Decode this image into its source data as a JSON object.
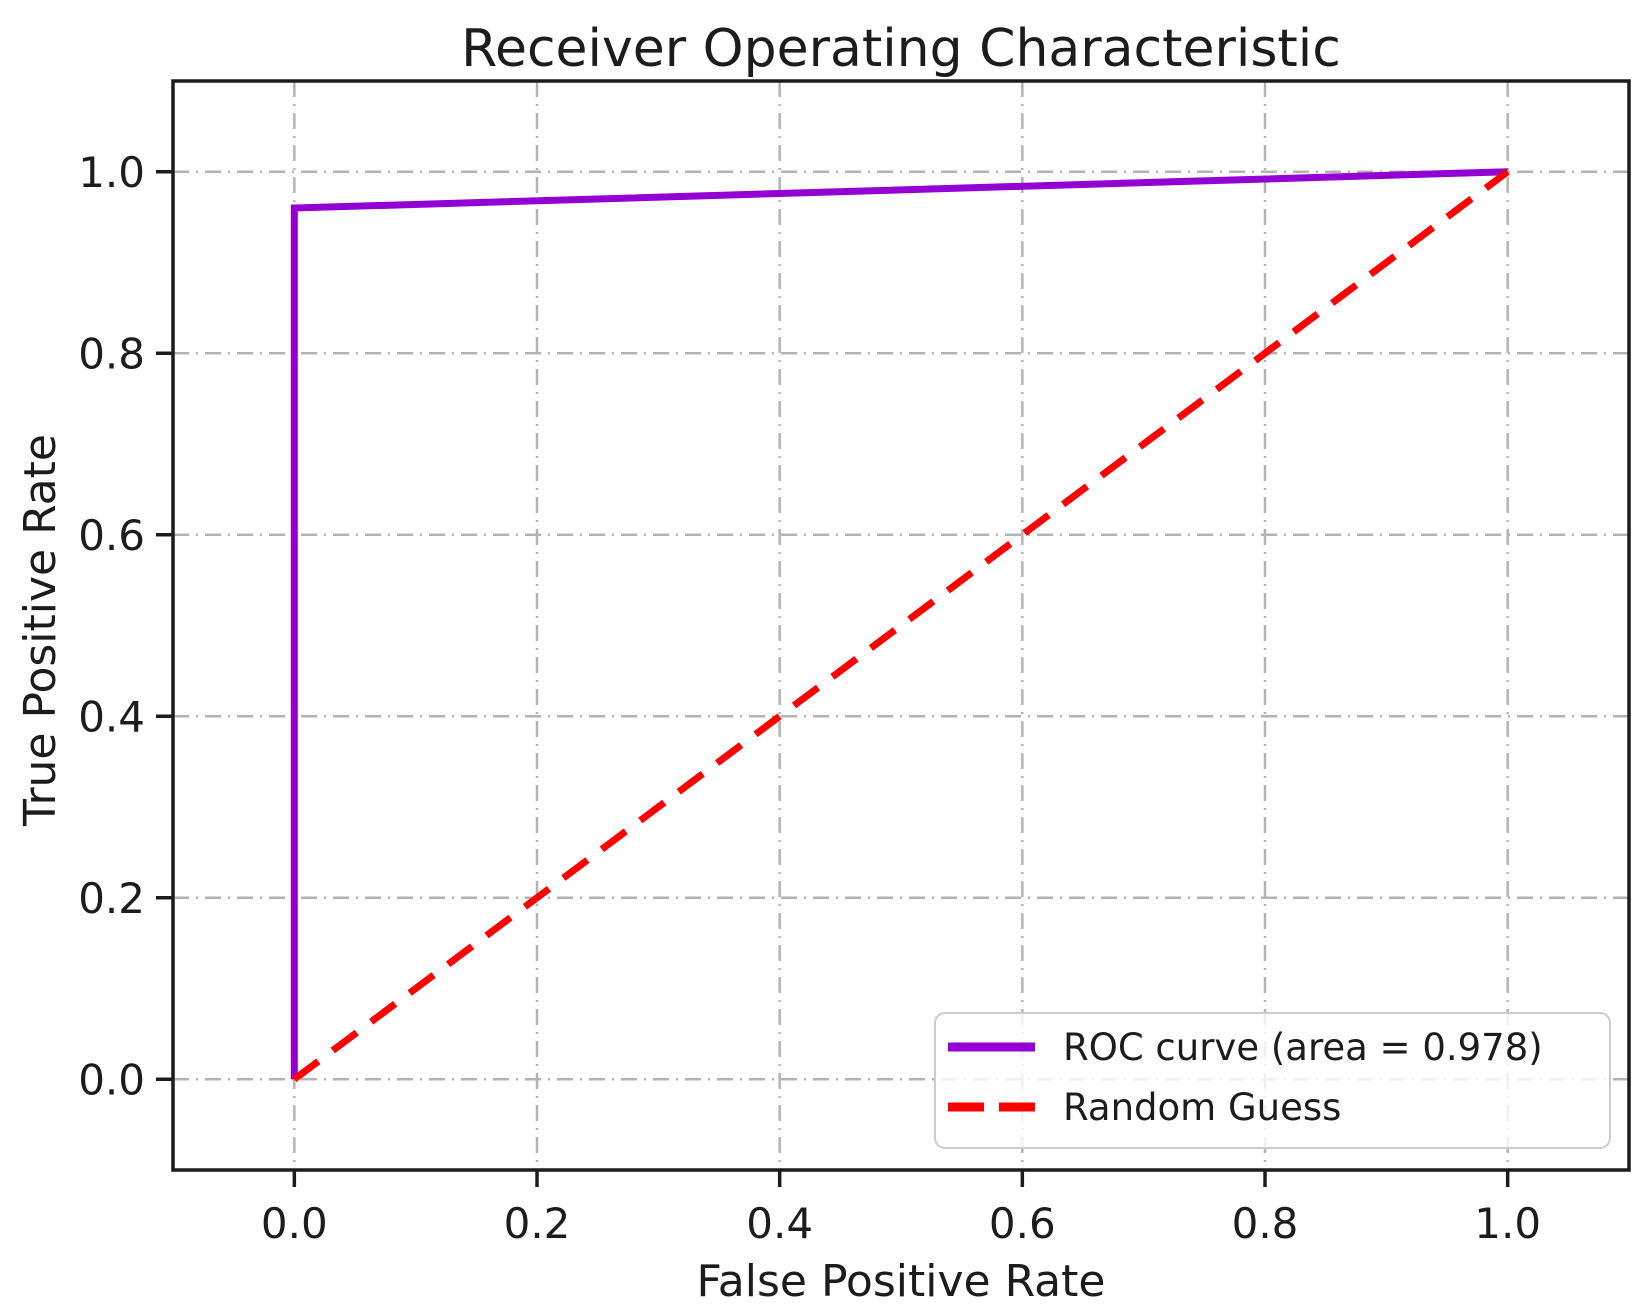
{
  "chart_data": {
    "type": "line",
    "title": "Receiver Operating Characteristic",
    "xlabel": "False Positive Rate",
    "ylabel": "True Positive Rate",
    "xlim": [
      -0.1,
      1.1
    ],
    "ylim": [
      -0.1,
      1.1
    ],
    "x_ticks": [
      0.0,
      0.2,
      0.4,
      0.6,
      0.8,
      1.0
    ],
    "y_ticks": [
      0.0,
      0.2,
      0.4,
      0.6,
      0.8,
      1.0
    ],
    "x_tick_labels": [
      "0.0",
      "0.2",
      "0.4",
      "0.6",
      "0.8",
      "1.0"
    ],
    "y_tick_labels": [
      "0.0",
      "0.2",
      "0.4",
      "0.6",
      "0.8",
      "1.0"
    ],
    "grid": true,
    "grid_style": "dash-dot",
    "legend_position": "lower right",
    "series": [
      {
        "name": "ROC curve (area = 0.978)",
        "color": "#9400D3",
        "style": "solid",
        "auc": 0.978,
        "points": [
          [
            0.0,
            0.0
          ],
          [
            0.0,
            0.96
          ],
          [
            1.0,
            1.0
          ]
        ]
      },
      {
        "name": "Random Guess",
        "color": "#FF0000",
        "style": "dashed",
        "points": [
          [
            0.0,
            0.0
          ],
          [
            1.0,
            1.0
          ]
        ]
      }
    ]
  },
  "colors": {
    "background": "#ffffff",
    "frame": "#1c1c1c",
    "text": "#1c1c1c",
    "grid": "#b3b3b3",
    "legend_border": "#cccccc"
  }
}
